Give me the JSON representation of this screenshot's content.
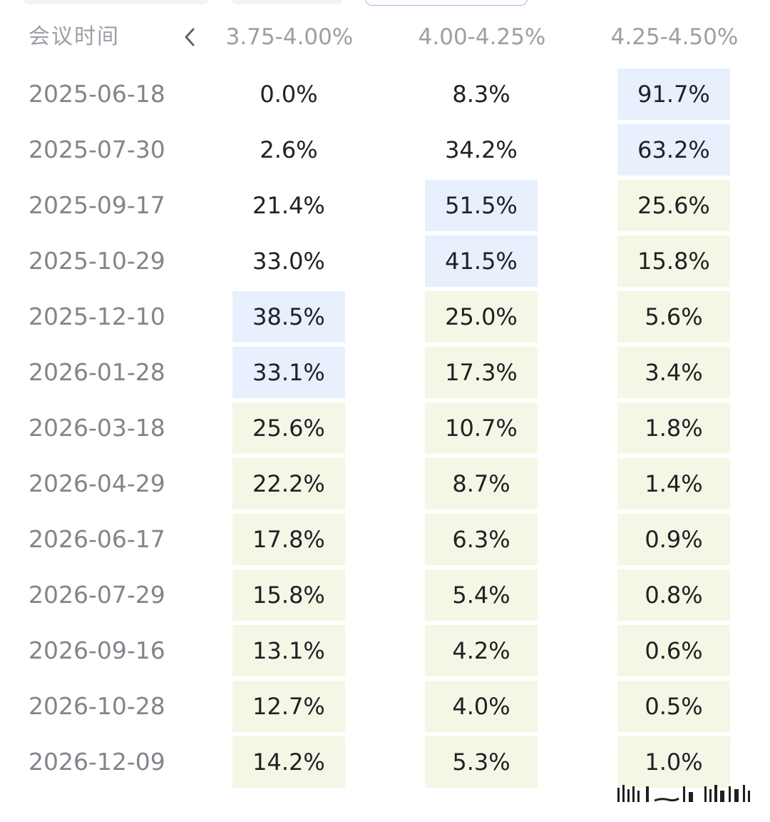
{
  "header": {
    "date_label": "会议时间",
    "columns": [
      "3.75-4.00%",
      "4.00-4.25%",
      "4.25-4.50%"
    ]
  },
  "icons": {
    "prev": "chevron-left-icon"
  },
  "colors": {
    "highlight_blue": "#e8f0fe",
    "highlight_cream": "#f6f6e6",
    "date_text": "#80868b",
    "value_text": "#202124"
  },
  "rows": [
    {
      "date": "2025-06-18",
      "values": [
        "0.0%",
        "8.3%",
        "91.7%"
      ],
      "hl": [
        "",
        "",
        "blue"
      ]
    },
    {
      "date": "2025-07-30",
      "values": [
        "2.6%",
        "34.2%",
        "63.2%"
      ],
      "hl": [
        "",
        "",
        "blue"
      ]
    },
    {
      "date": "2025-09-17",
      "values": [
        "21.4%",
        "51.5%",
        "25.6%"
      ],
      "hl": [
        "",
        "blue",
        "cream"
      ]
    },
    {
      "date": "2025-10-29",
      "values": [
        "33.0%",
        "41.5%",
        "15.8%"
      ],
      "hl": [
        "",
        "blue",
        "cream"
      ]
    },
    {
      "date": "2025-12-10",
      "values": [
        "38.5%",
        "25.0%",
        "5.6%"
      ],
      "hl": [
        "blue",
        "cream",
        "cream"
      ]
    },
    {
      "date": "2026-01-28",
      "values": [
        "33.1%",
        "17.3%",
        "3.4%"
      ],
      "hl": [
        "blue",
        "cream",
        "cream"
      ]
    },
    {
      "date": "2026-03-18",
      "values": [
        "25.6%",
        "10.7%",
        "1.8%"
      ],
      "hl": [
        "cream",
        "cream",
        "cream"
      ]
    },
    {
      "date": "2026-04-29",
      "values": [
        "22.2%",
        "8.7%",
        "1.4%"
      ],
      "hl": [
        "cream",
        "cream",
        "cream"
      ]
    },
    {
      "date": "2026-06-17",
      "values": [
        "17.8%",
        "6.3%",
        "0.9%"
      ],
      "hl": [
        "cream",
        "cream",
        "cream"
      ]
    },
    {
      "date": "2026-07-29",
      "values": [
        "15.8%",
        "5.4%",
        "0.8%"
      ],
      "hl": [
        "cream",
        "cream",
        "cream"
      ]
    },
    {
      "date": "2026-09-16",
      "values": [
        "13.1%",
        "4.2%",
        "0.6%"
      ],
      "hl": [
        "cream",
        "cream",
        "cream"
      ]
    },
    {
      "date": "2026-10-28",
      "values": [
        "12.7%",
        "4.0%",
        "0.5%"
      ],
      "hl": [
        "cream",
        "cream",
        "cream"
      ]
    },
    {
      "date": "2026-12-09",
      "values": [
        "14.2%",
        "5.3%",
        "1.0%"
      ],
      "hl": [
        "cream",
        "cream",
        "cream"
      ]
    }
  ]
}
